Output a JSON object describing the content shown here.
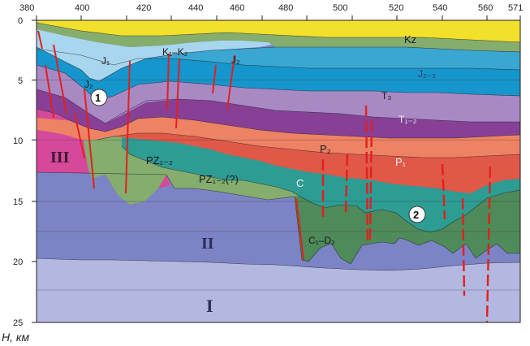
{
  "figure": {
    "x_ticks": [
      "380",
      "400",
      "420",
      "440",
      "460",
      "480",
      "500",
      "520",
      "540",
      "560",
      "571"
    ],
    "y_ticks": [
      "0",
      "5",
      "10",
      "15",
      "20",
      "25"
    ],
    "y_axis_label": "H, км",
    "colors": {
      "kz": "#f2e02a",
      "j1": "#a8d6ef",
      "j2": "#3aa6d2",
      "j23": "#1596cc",
      "t3": "#a889c4",
      "t12": "#874096",
      "p2": "#ee8264",
      "p1": "#e05848",
      "c": "#2d9c93",
      "c3d2": "#4f8a5a",
      "pz": "#84ad6e",
      "iii": "#d6499a",
      "ii": "#7c84c6",
      "i": "#b3b8e0",
      "fault": "#e02020"
    }
  },
  "labels": {
    "kz": "Kz",
    "j1": "J₁",
    "k1k2": "K₁–K₂",
    "j2_mid": "J₂",
    "j2_left": "J₂",
    "j23": "J₂₋₃",
    "t3": "T₃",
    "t12": "T₁₋₂",
    "p2": "P₂",
    "p1": "P₁",
    "c": "C",
    "pz12": "PZ₁₋₂",
    "pz12q": "PZ₁₋₂(?)",
    "c3d2": "C₁–D₂",
    "iii": "III",
    "ii": "II",
    "i": "I",
    "m1": "1",
    "m2": "2"
  }
}
